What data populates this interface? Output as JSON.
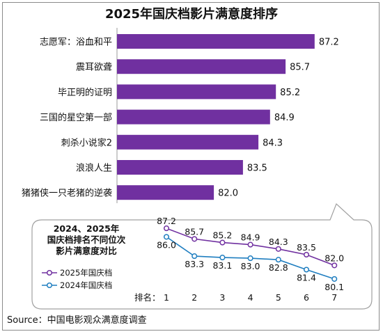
{
  "title": "2025年国庆档影片满意度排序",
  "source": "Source：中国电影观众满意度调查",
  "colors": {
    "purple": "#7030a0",
    "blue": "#1f7ec0",
    "line": "#888888"
  },
  "chart_data": [
    {
      "type": "bar",
      "orientation": "horizontal",
      "categories": [
        "志愿军：浴血和平",
        "震耳欲聋",
        "毕正明的证明",
        "三国的星空第一部",
        "刺杀小说家2",
        "浪浪人生",
        "猪猪侠一只老猪的逆袭"
      ],
      "values": [
        87.2,
        85.7,
        85.2,
        84.9,
        84.3,
        83.5,
        82.0
      ],
      "xlim": [
        77,
        88.5
      ],
      "color": "#7030a0"
    },
    {
      "type": "line",
      "title_lines": [
        "2024、2025年",
        "国庆档排名不同位次",
        "影片满意度对比"
      ],
      "xlabel": "排名：",
      "x": [
        1,
        2,
        3,
        4,
        5,
        6,
        7
      ],
      "ylim": [
        79.5,
        87.5
      ],
      "series": [
        {
          "name": "2025年国庆档",
          "color": "#7030a0",
          "values": [
            87.2,
            85.7,
            85.2,
            84.9,
            84.3,
            83.5,
            82.0
          ]
        },
        {
          "name": "2024年国庆档",
          "color": "#1f7ec0",
          "values": [
            86.0,
            83.3,
            83.1,
            83.0,
            82.8,
            81.4,
            80.1
          ]
        }
      ]
    }
  ]
}
